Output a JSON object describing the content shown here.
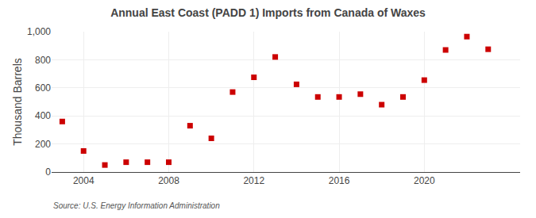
{
  "chart_data": {
    "type": "scatter",
    "title": "Annual East Coast (PADD 1) Imports from Canada of Waxes",
    "ylabel": "Thousand Barrels",
    "annotations": [
      "Source: U.S. Energy Information Administration"
    ],
    "x": [
      2003,
      2004,
      2005,
      2006,
      2007,
      2008,
      2009,
      2010,
      2011,
      2012,
      2013,
      2014,
      2015,
      2016,
      2017,
      2018,
      2019,
      2020,
      2021,
      2022,
      2023
    ],
    "values": [
      360,
      150,
      50,
      70,
      70,
      70,
      330,
      240,
      570,
      675,
      820,
      625,
      535,
      535,
      555,
      480,
      535,
      655,
      870,
      965,
      875
    ],
    "color": "#cc0000",
    "marker": "square",
    "xlim": [
      2002.5,
      2024.5
    ],
    "ylim": [
      0,
      1000
    ],
    "xticks": [
      2004,
      2008,
      2012,
      2016,
      2020
    ],
    "yticks": [
      0,
      200,
      400,
      600,
      800,
      {
        "value": 1000,
        "label": "1,000"
      }
    ],
    "grid": true
  }
}
